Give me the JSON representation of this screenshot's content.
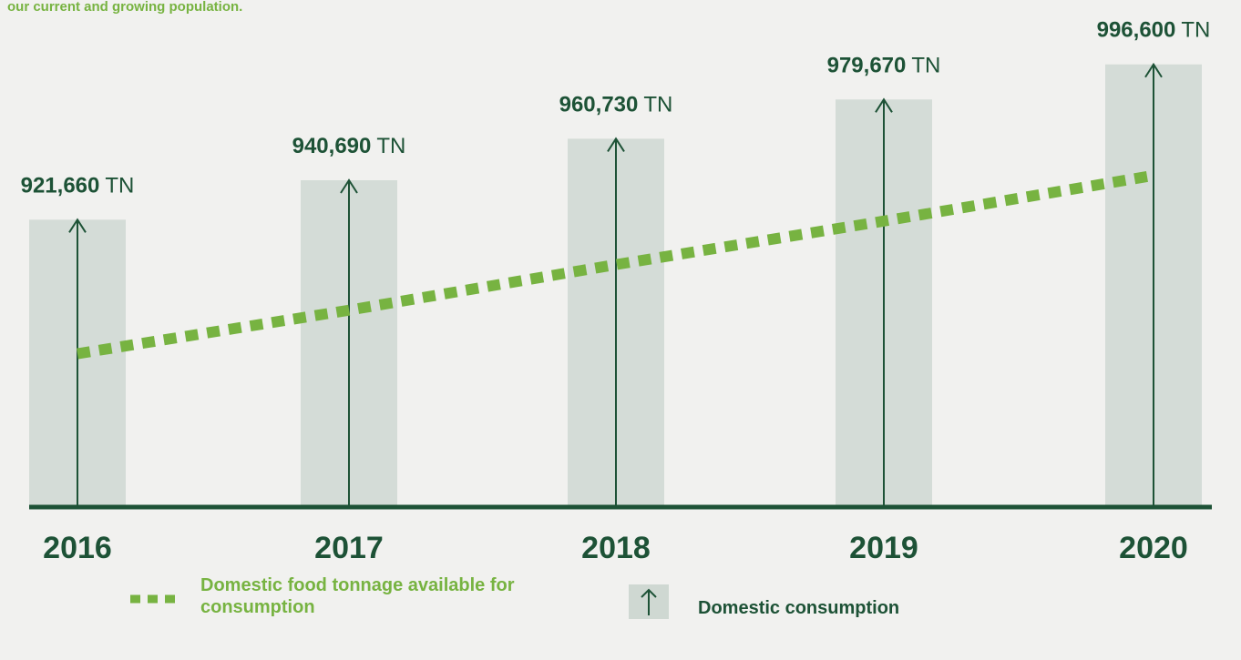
{
  "intro": "our current and growing population.",
  "chart_data": {
    "type": "bar",
    "categories": [
      "2016",
      "2017",
      "2018",
      "2019",
      "2020"
    ],
    "unit": "TN",
    "ylim": [
      783000,
      1000000
    ],
    "series": [
      {
        "name": "Domestic consumption",
        "type": "bar",
        "color": "#1d5236",
        "values": [
          921660,
          940690,
          960730,
          979670,
          996600
        ],
        "value_labels": [
          "921,660",
          "940,690",
          "960,730",
          "979,670",
          "996,600"
        ]
      },
      {
        "name": "Domestic food tonnage available for consumption",
        "type": "line",
        "color": "#77b341",
        "values": [
          857000,
          878000,
          900000,
          921000,
          943000
        ]
      }
    ]
  }
}
